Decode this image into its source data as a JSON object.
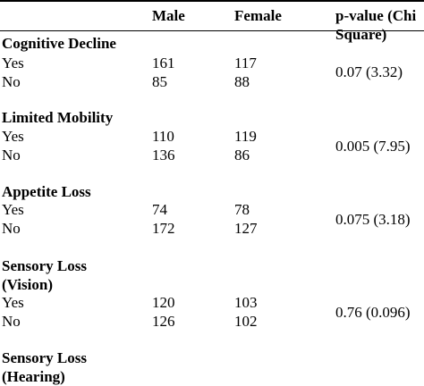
{
  "header": {
    "male": "Male",
    "female": "Female",
    "pvalue_line1": "p-value (Chi",
    "pvalue_line2": "Square)"
  },
  "sections": [
    {
      "title_line1": "Cognitive Decline",
      "title_line2": "",
      "rows": [
        {
          "label": "Yes",
          "male": "161",
          "female": "117"
        },
        {
          "label": "No",
          "male": "85",
          "female": "88"
        }
      ],
      "pvalue": "0.07 (3.32)"
    },
    {
      "title_line1": "Limited Mobility",
      "title_line2": "",
      "rows": [
        {
          "label": "Yes",
          "male": "110",
          "female": "119"
        },
        {
          "label": "No",
          "male": "136",
          "female": "86"
        }
      ],
      "pvalue": "0.005 (7.95)"
    },
    {
      "title_line1": "Appetite Loss",
      "title_line2": "",
      "rows": [
        {
          "label": "Yes",
          "male": "74",
          "female": "78"
        },
        {
          "label": "No",
          "male": "172",
          "female": "127"
        }
      ],
      "pvalue": "0.075 (3.18)"
    },
    {
      "title_line1": "Sensory Loss",
      "title_line2": "(Vision)",
      "rows": [
        {
          "label": "Yes",
          "male": "120",
          "female": "103"
        },
        {
          "label": "No",
          "male": "126",
          "female": "102"
        }
      ],
      "pvalue": "0.76 (0.096)"
    },
    {
      "title_line1": "Sensory Loss",
      "title_line2": "(Hearing)",
      "rows": [],
      "pvalue": ""
    }
  ]
}
